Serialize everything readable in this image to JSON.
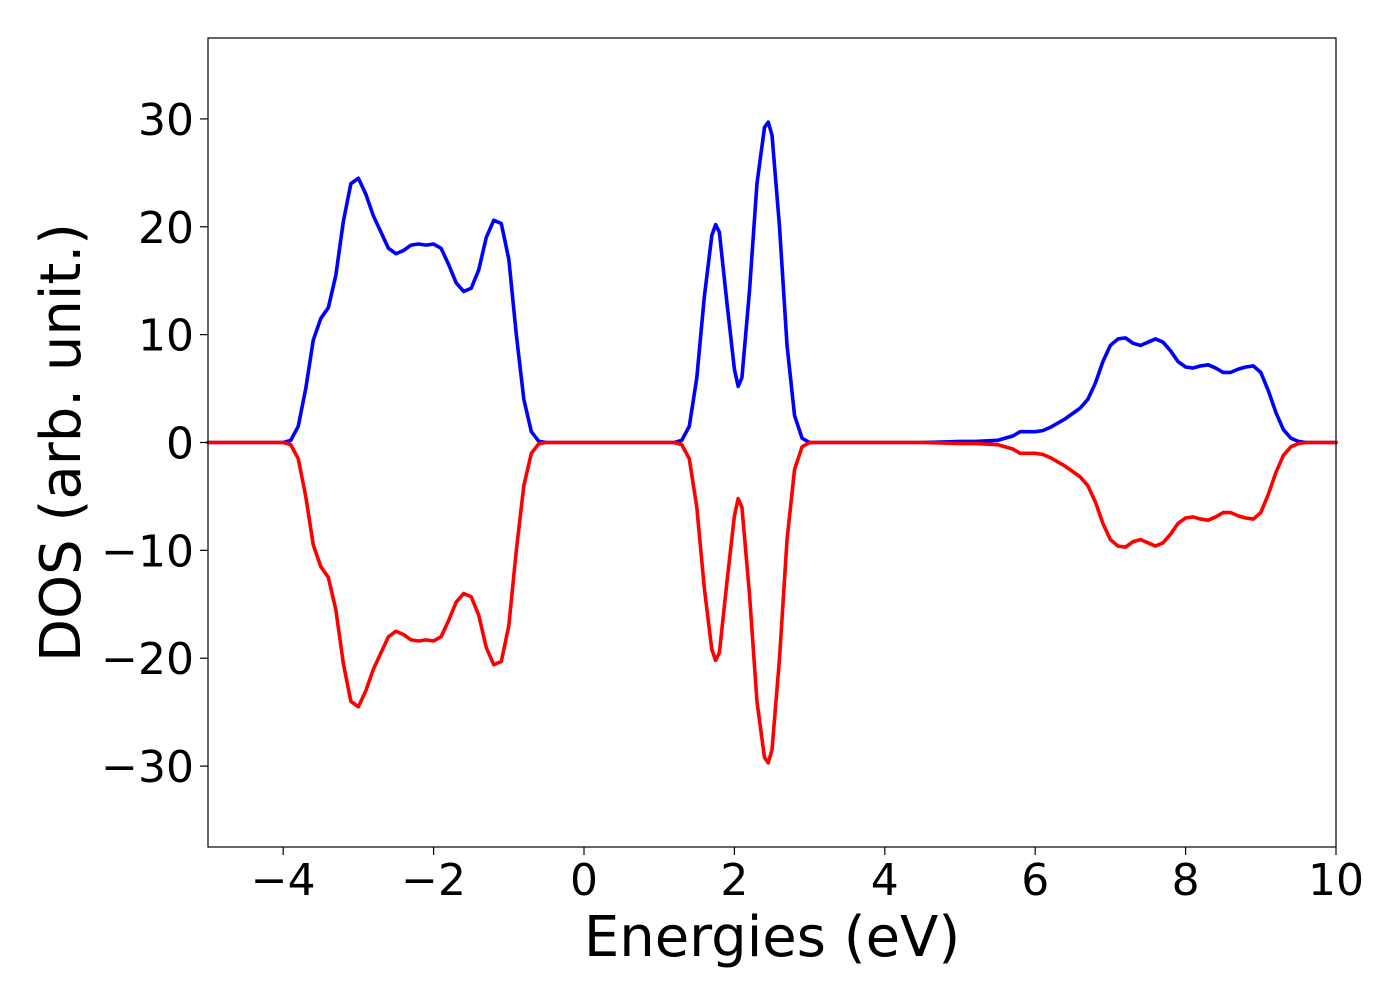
{
  "chart_data": {
    "type": "line",
    "title": "",
    "xlabel": "Energies (eV)",
    "ylabel": "DOS (arb. unit.)",
    "xlim": [
      -5,
      10
    ],
    "ylim": [
      -37.5,
      37.5
    ],
    "grid": false,
    "legend": "none",
    "x_ticks": [
      -4,
      -2,
      0,
      2,
      4,
      6,
      8,
      10
    ],
    "x_tick_labels": [
      "−4",
      "−2",
      "0",
      "2",
      "4",
      "6",
      "8",
      "10"
    ],
    "y_ticks": [
      -30,
      -20,
      -10,
      0,
      10,
      20,
      30
    ],
    "y_tick_labels": [
      "−30",
      "−20",
      "−10",
      "0",
      "10",
      "20",
      "30"
    ],
    "series": [
      {
        "color": "#0000ff",
        "points": [
          [
            -5.0,
            0.0
          ],
          [
            -4.0,
            0.0
          ],
          [
            -3.9,
            0.2
          ],
          [
            -3.8,
            1.5
          ],
          [
            -3.7,
            5.0
          ],
          [
            -3.6,
            9.5
          ],
          [
            -3.5,
            11.5
          ],
          [
            -3.4,
            12.5
          ],
          [
            -3.3,
            15.5
          ],
          [
            -3.2,
            20.5
          ],
          [
            -3.1,
            24.0
          ],
          [
            -3.0,
            24.5
          ],
          [
            -2.9,
            23.0
          ],
          [
            -2.8,
            21.0
          ],
          [
            -2.7,
            19.5
          ],
          [
            -2.6,
            18.0
          ],
          [
            -2.5,
            17.5
          ],
          [
            -2.4,
            17.8
          ],
          [
            -2.3,
            18.3
          ],
          [
            -2.2,
            18.4
          ],
          [
            -2.1,
            18.3
          ],
          [
            -2.0,
            18.4
          ],
          [
            -1.9,
            18.0
          ],
          [
            -1.8,
            16.5
          ],
          [
            -1.7,
            14.8
          ],
          [
            -1.6,
            14.0
          ],
          [
            -1.5,
            14.3
          ],
          [
            -1.4,
            16.0
          ],
          [
            -1.3,
            19.0
          ],
          [
            -1.2,
            20.6
          ],
          [
            -1.1,
            20.3
          ],
          [
            -1.0,
            17.0
          ],
          [
            -0.9,
            10.0
          ],
          [
            -0.8,
            4.0
          ],
          [
            -0.7,
            1.0
          ],
          [
            -0.6,
            0.1
          ],
          [
            -0.5,
            0.0
          ],
          [
            1.2,
            0.0
          ],
          [
            1.3,
            0.2
          ],
          [
            1.4,
            1.5
          ],
          [
            1.5,
            6.0
          ],
          [
            1.6,
            13.5
          ],
          [
            1.7,
            19.2
          ],
          [
            1.75,
            20.2
          ],
          [
            1.8,
            19.5
          ],
          [
            1.9,
            13.0
          ],
          [
            2.0,
            6.8
          ],
          [
            2.05,
            5.2
          ],
          [
            2.1,
            6.0
          ],
          [
            2.2,
            14.0
          ],
          [
            2.3,
            24.0
          ],
          [
            2.4,
            29.2
          ],
          [
            2.45,
            29.7
          ],
          [
            2.5,
            28.5
          ],
          [
            2.6,
            20.0
          ],
          [
            2.7,
            9.0
          ],
          [
            2.8,
            2.5
          ],
          [
            2.9,
            0.4
          ],
          [
            3.0,
            0.0
          ],
          [
            4.5,
            0.0
          ],
          [
            4.8,
            0.05
          ],
          [
            5.0,
            0.1
          ],
          [
            5.2,
            0.1
          ],
          [
            5.5,
            0.2
          ],
          [
            5.7,
            0.6
          ],
          [
            5.8,
            1.0
          ],
          [
            6.0,
            1.0
          ],
          [
            6.1,
            1.1
          ],
          [
            6.2,
            1.4
          ],
          [
            6.4,
            2.2
          ],
          [
            6.6,
            3.2
          ],
          [
            6.7,
            4.0
          ],
          [
            6.8,
            5.5
          ],
          [
            6.9,
            7.5
          ],
          [
            7.0,
            9.0
          ],
          [
            7.1,
            9.6
          ],
          [
            7.2,
            9.7
          ],
          [
            7.3,
            9.2
          ],
          [
            7.4,
            9.0
          ],
          [
            7.5,
            9.3
          ],
          [
            7.6,
            9.6
          ],
          [
            7.7,
            9.3
          ],
          [
            7.8,
            8.5
          ],
          [
            7.9,
            7.5
          ],
          [
            8.0,
            7.0
          ],
          [
            8.1,
            6.9
          ],
          [
            8.2,
            7.1
          ],
          [
            8.3,
            7.2
          ],
          [
            8.4,
            6.9
          ],
          [
            8.5,
            6.5
          ],
          [
            8.6,
            6.5
          ],
          [
            8.7,
            6.8
          ],
          [
            8.8,
            7.0
          ],
          [
            8.9,
            7.1
          ],
          [
            9.0,
            6.5
          ],
          [
            9.1,
            4.8
          ],
          [
            9.2,
            2.8
          ],
          [
            9.3,
            1.2
          ],
          [
            9.4,
            0.4
          ],
          [
            9.5,
            0.1
          ],
          [
            9.6,
            0.0
          ],
          [
            10.0,
            0.0
          ]
        ]
      },
      {
        "color": "#ff0000",
        "points": [
          [
            -5.0,
            0.0
          ],
          [
            -4.0,
            0.0
          ],
          [
            -3.9,
            -0.2
          ],
          [
            -3.8,
            -1.5
          ],
          [
            -3.7,
            -5.0
          ],
          [
            -3.6,
            -9.5
          ],
          [
            -3.5,
            -11.5
          ],
          [
            -3.4,
            -12.5
          ],
          [
            -3.3,
            -15.5
          ],
          [
            -3.2,
            -20.5
          ],
          [
            -3.1,
            -24.0
          ],
          [
            -3.0,
            -24.5
          ],
          [
            -2.9,
            -23.0
          ],
          [
            -2.8,
            -21.0
          ],
          [
            -2.7,
            -19.5
          ],
          [
            -2.6,
            -18.0
          ],
          [
            -2.5,
            -17.5
          ],
          [
            -2.4,
            -17.8
          ],
          [
            -2.3,
            -18.3
          ],
          [
            -2.2,
            -18.4
          ],
          [
            -2.1,
            -18.3
          ],
          [
            -2.0,
            -18.4
          ],
          [
            -1.9,
            -18.0
          ],
          [
            -1.8,
            -16.5
          ],
          [
            -1.7,
            -14.8
          ],
          [
            -1.6,
            -14.0
          ],
          [
            -1.5,
            -14.3
          ],
          [
            -1.4,
            -16.0
          ],
          [
            -1.3,
            -19.0
          ],
          [
            -1.2,
            -20.6
          ],
          [
            -1.1,
            -20.3
          ],
          [
            -1.0,
            -17.0
          ],
          [
            -0.9,
            -10.0
          ],
          [
            -0.8,
            -4.0
          ],
          [
            -0.7,
            -1.0
          ],
          [
            -0.6,
            -0.1
          ],
          [
            -0.5,
            0.0
          ],
          [
            1.2,
            0.0
          ],
          [
            1.3,
            -0.2
          ],
          [
            1.4,
            -1.5
          ],
          [
            1.5,
            -6.0
          ],
          [
            1.6,
            -13.5
          ],
          [
            1.7,
            -19.2
          ],
          [
            1.75,
            -20.2
          ],
          [
            1.8,
            -19.5
          ],
          [
            1.9,
            -13.0
          ],
          [
            2.0,
            -6.8
          ],
          [
            2.05,
            -5.2
          ],
          [
            2.1,
            -6.0
          ],
          [
            2.2,
            -14.0
          ],
          [
            2.3,
            -24.0
          ],
          [
            2.4,
            -29.2
          ],
          [
            2.45,
            -29.7
          ],
          [
            2.5,
            -28.5
          ],
          [
            2.6,
            -20.0
          ],
          [
            2.7,
            -9.0
          ],
          [
            2.8,
            -2.5
          ],
          [
            2.9,
            -0.4
          ],
          [
            3.0,
            0.0
          ],
          [
            4.5,
            0.0
          ],
          [
            4.8,
            -0.05
          ],
          [
            5.0,
            -0.1
          ],
          [
            5.2,
            -0.1
          ],
          [
            5.5,
            -0.2
          ],
          [
            5.7,
            -0.6
          ],
          [
            5.8,
            -1.0
          ],
          [
            6.0,
            -1.0
          ],
          [
            6.1,
            -1.1
          ],
          [
            6.2,
            -1.4
          ],
          [
            6.4,
            -2.2
          ],
          [
            6.6,
            -3.2
          ],
          [
            6.7,
            -4.0
          ],
          [
            6.8,
            -5.5
          ],
          [
            6.9,
            -7.5
          ],
          [
            7.0,
            -9.0
          ],
          [
            7.1,
            -9.6
          ],
          [
            7.2,
            -9.7
          ],
          [
            7.3,
            -9.2
          ],
          [
            7.4,
            -9.0
          ],
          [
            7.5,
            -9.3
          ],
          [
            7.6,
            -9.6
          ],
          [
            7.7,
            -9.3
          ],
          [
            7.8,
            -8.5
          ],
          [
            7.9,
            -7.5
          ],
          [
            8.0,
            -7.0
          ],
          [
            8.1,
            -6.9
          ],
          [
            8.2,
            -7.1
          ],
          [
            8.3,
            -7.2
          ],
          [
            8.4,
            -6.9
          ],
          [
            8.5,
            -6.5
          ],
          [
            8.6,
            -6.5
          ],
          [
            8.7,
            -6.8
          ],
          [
            8.8,
            -7.0
          ],
          [
            8.9,
            -7.1
          ],
          [
            9.0,
            -6.5
          ],
          [
            9.1,
            -4.8
          ],
          [
            9.2,
            -2.8
          ],
          [
            9.3,
            -1.2
          ],
          [
            9.4,
            -0.4
          ],
          [
            9.5,
            -0.1
          ],
          [
            9.6,
            0.0
          ],
          [
            10.0,
            0.0
          ]
        ]
      }
    ]
  }
}
